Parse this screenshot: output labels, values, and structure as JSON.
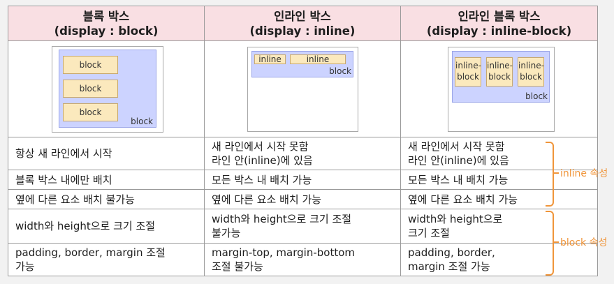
{
  "headers": [
    {
      "line1": "블록 박스",
      "line2": "(display : block)"
    },
    {
      "line1": "인라인 박스",
      "line2": "(display : inline)"
    },
    {
      "line1": "인라인 블록 박스",
      "line2": "(display : inline-block)"
    }
  ],
  "illustrations": {
    "block": {
      "items": [
        "block",
        "block",
        "block"
      ],
      "container_label": "block"
    },
    "inline": {
      "items": [
        "inline",
        "inline"
      ],
      "container_label": "block"
    },
    "inline_block": {
      "items": [
        "inline-\nblock",
        "inline-\nblock",
        "inline-\nblock"
      ],
      "container_label": "block"
    }
  },
  "rows": [
    {
      "block": "항상 새 라인에서 시작",
      "inline": "새 라인에서 시작 못함\n라인 안(inline)에 있음",
      "inline_block": "새 라인에서 시작 못함\n라인 안(inline)에 있음"
    },
    {
      "block": "블록 박스 내에만 배치",
      "inline": "모든 박스 내 배치 가능",
      "inline_block": "모든 박스 내 배치 가능"
    },
    {
      "block": "옆에 다른 요소 배치 불가능",
      "inline": "옆에 다른 요소 배치 가능",
      "inline_block": "옆에 다른 요소 배치 가능"
    },
    {
      "block": "width와 height으로 크기 조절",
      "inline": "width와 height으로 크기 조절\n불가능",
      "inline_block": "width와 height으로\n크기 조절"
    },
    {
      "block": "padding, border, margin 조절\n가능",
      "inline": "margin-top, margin-bottom\n조절 불가능",
      "inline_block": "padding, border,\nmargin 조절 가능"
    }
  ],
  "annotations": {
    "inline_props": "inline 속성",
    "block_props": "block 속성"
  },
  "colors": {
    "header_bg": "#f9dfe3",
    "container_blue": "#ccd3ff",
    "item_yellow": "#fbe9bd",
    "annotation_orange": "#f0953a"
  }
}
